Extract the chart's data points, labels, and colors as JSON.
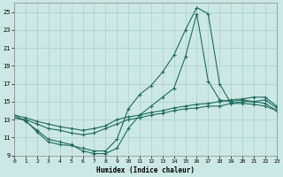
{
  "xlabel": "Humidex (Indice chaleur)",
  "background_color": "#cce8e4",
  "grid_color": "#aacfca",
  "line_color": "#1f6b5e",
  "xlim": [
    0,
    23
  ],
  "ylim": [
    9,
    26
  ],
  "xticks": [
    0,
    1,
    2,
    3,
    4,
    5,
    6,
    7,
    8,
    9,
    10,
    11,
    12,
    13,
    14,
    15,
    16,
    17,
    18,
    19,
    20,
    21,
    22,
    23
  ],
  "yticks": [
    9,
    11,
    13,
    15,
    17,
    19,
    21,
    23,
    25
  ],
  "line1_x": [
    0,
    1,
    2,
    3,
    4,
    5,
    6,
    7,
    8,
    9,
    10,
    11,
    12,
    13,
    14,
    15,
    16,
    17,
    18,
    19,
    20,
    21,
    22,
    23
  ],
  "line1_y": [
    13.5,
    12.8,
    11.8,
    10.8,
    10.5,
    10.2,
    9.5,
    9.2,
    9.2,
    9.8,
    12.0,
    13.5,
    14.5,
    15.5,
    16.5,
    20.0,
    24.8,
    17.3,
    15.2,
    15.0,
    15.2,
    15.0,
    14.8,
    14.0
  ],
  "line2_x": [
    0,
    1,
    2,
    3,
    4,
    5,
    6,
    7,
    8,
    9,
    10,
    11,
    12,
    13,
    14,
    15,
    16,
    17,
    18,
    19,
    20,
    21,
    22,
    23
  ],
  "line2_y": [
    13.2,
    12.9,
    11.6,
    10.5,
    10.2,
    10.1,
    9.8,
    9.5,
    9.5,
    10.8,
    14.2,
    15.8,
    16.8,
    18.3,
    20.2,
    23.0,
    25.5,
    24.8,
    17.0,
    14.8,
    14.8,
    14.7,
    14.5,
    14.0
  ],
  "line3_x": [
    0,
    1,
    2,
    3,
    4,
    5,
    6,
    7,
    8,
    9,
    10,
    11,
    12,
    13,
    14,
    15,
    16,
    17,
    18,
    19,
    20,
    21,
    22,
    23
  ],
  "line3_y": [
    13.5,
    13.2,
    12.8,
    12.5,
    12.2,
    12.0,
    11.8,
    12.0,
    12.3,
    13.0,
    13.3,
    13.5,
    13.8,
    14.0,
    14.3,
    14.5,
    14.7,
    14.8,
    15.0,
    15.2,
    15.3,
    15.5,
    15.5,
    14.5
  ],
  "line4_x": [
    0,
    1,
    2,
    3,
    4,
    5,
    6,
    7,
    8,
    9,
    10,
    11,
    12,
    13,
    14,
    15,
    16,
    17,
    18,
    19,
    20,
    21,
    22,
    23
  ],
  "line4_y": [
    13.2,
    13.0,
    12.5,
    12.0,
    11.8,
    11.5,
    11.3,
    11.5,
    12.0,
    12.5,
    13.0,
    13.2,
    13.5,
    13.7,
    14.0,
    14.2,
    14.3,
    14.5,
    14.5,
    14.8,
    15.0,
    15.0,
    15.2,
    14.3
  ]
}
